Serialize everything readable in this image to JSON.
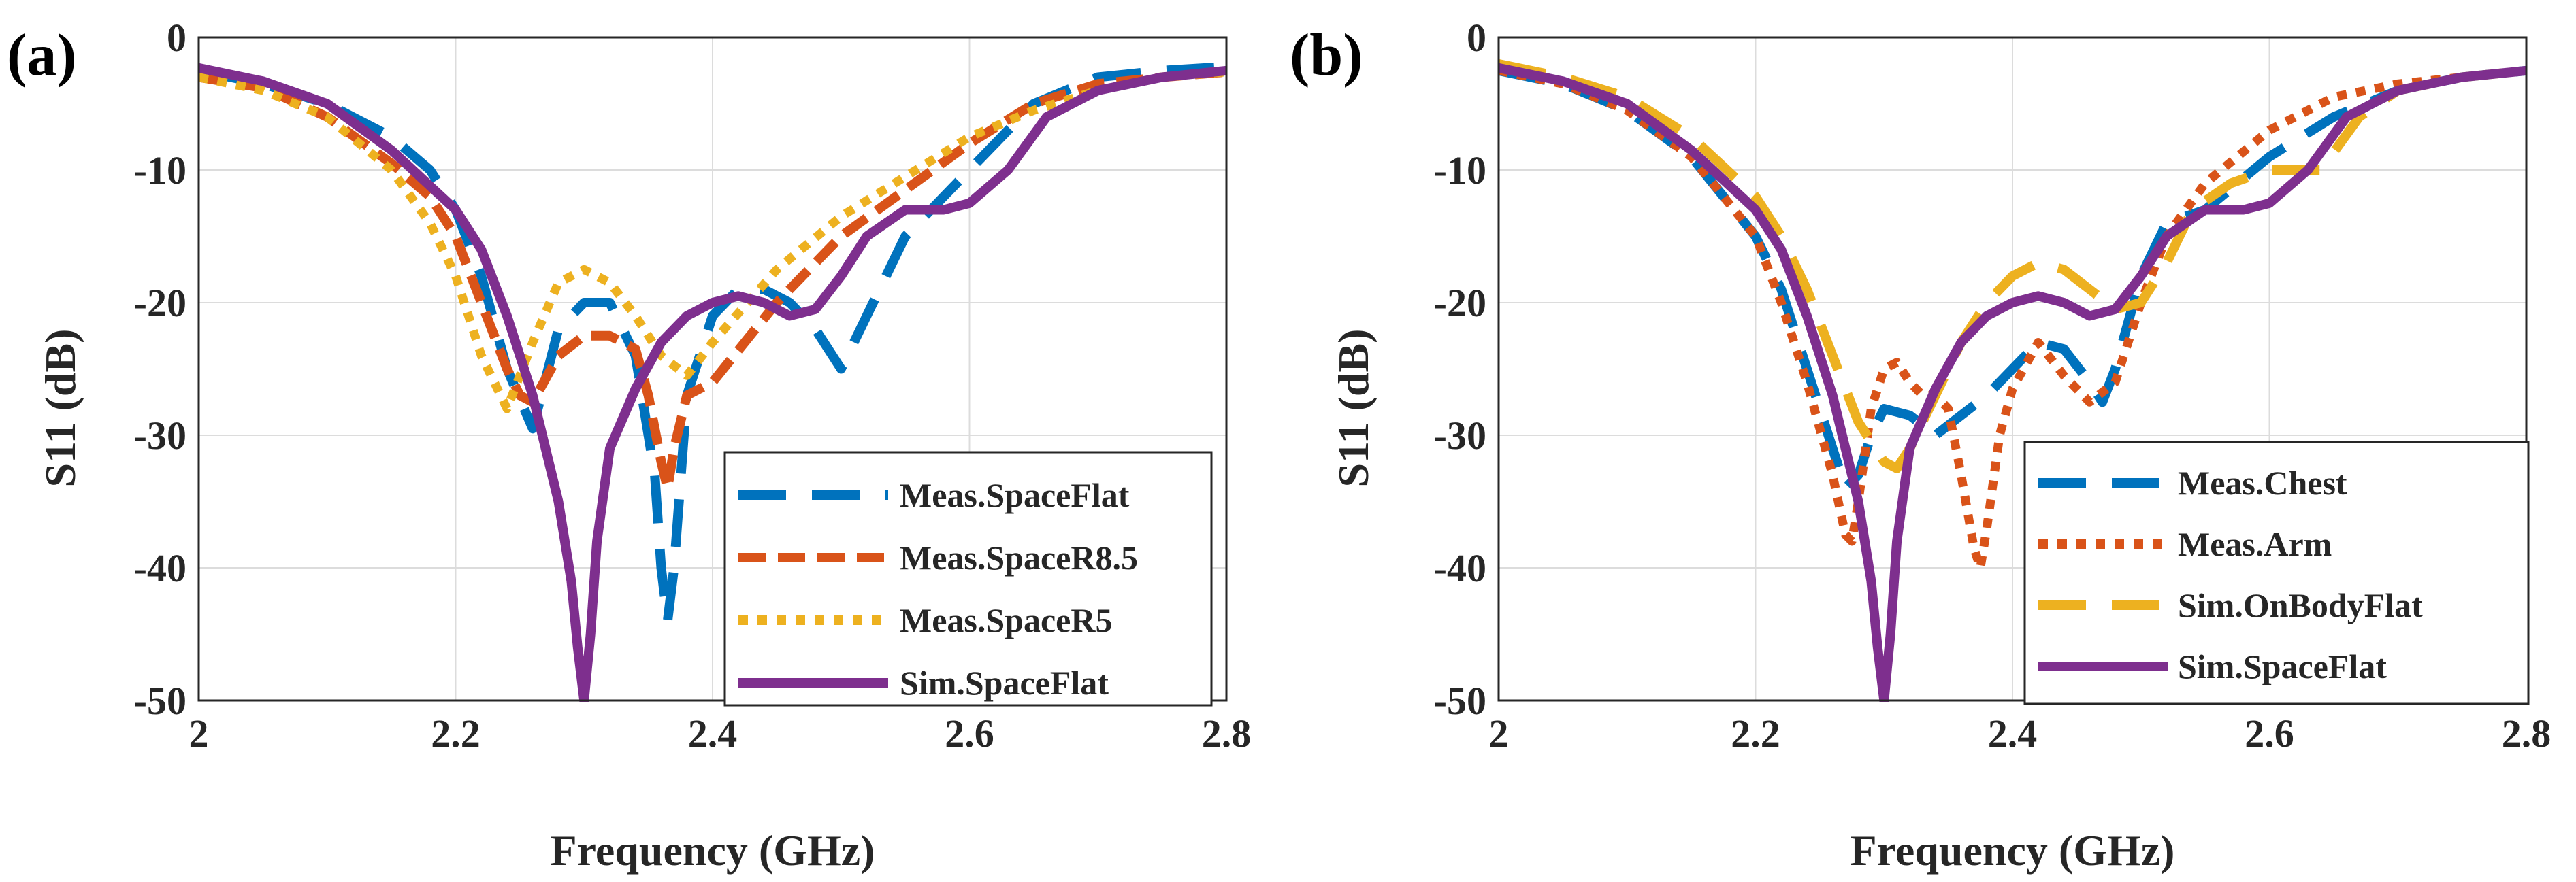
{
  "chart_data": [
    {
      "type": "line",
      "panel_label": "(a)",
      "xlabel": "Frequency (GHz)",
      "ylabel": "S11 (dB)",
      "xlim": [
        2,
        2.8
      ],
      "ylim": [
        -50,
        0
      ],
      "xticks": [
        2,
        2.2,
        2.4,
        2.6,
        2.8
      ],
      "xtick_labels": [
        "2",
        "2.2",
        "2.4",
        "2.6",
        "2.8"
      ],
      "yticks": [
        0,
        -10,
        -20,
        -30,
        -40,
        -50
      ],
      "ytick_labels": [
        "0",
        "-10",
        "-20",
        "-30",
        "-40",
        "-50"
      ],
      "grid": true,
      "legend_position": "bottom-right",
      "series": [
        {
          "name": "Meas.SpaceFlat",
          "color": "#0072BD",
          "style": "long-dash",
          "x": [
            2.0,
            2.05,
            2.1,
            2.15,
            2.18,
            2.2,
            2.22,
            2.24,
            2.26,
            2.28,
            2.3,
            2.32,
            2.34,
            2.355,
            2.36,
            2.365,
            2.37,
            2.38,
            2.4,
            2.42,
            2.44,
            2.46,
            2.48,
            2.5,
            2.52,
            2.55,
            2.6,
            2.65,
            2.7,
            2.75,
            2.8
          ],
          "y": [
            -2.5,
            -3.5,
            -5,
            -7.5,
            -10,
            -13,
            -18,
            -25,
            -29.5,
            -22,
            -20,
            -20,
            -24,
            -33,
            -40,
            -44,
            -40,
            -27,
            -21,
            -19,
            -19,
            -20,
            -22,
            -25,
            -21,
            -15,
            -10,
            -5,
            -3,
            -2.5,
            -2.2
          ]
        },
        {
          "name": "Meas.SpaceR8.5",
          "color": "#D95319",
          "style": "dashed",
          "x": [
            2.0,
            2.05,
            2.1,
            2.15,
            2.18,
            2.2,
            2.22,
            2.24,
            2.25,
            2.26,
            2.28,
            2.3,
            2.32,
            2.34,
            2.35,
            2.36,
            2.365,
            2.37,
            2.38,
            2.4,
            2.45,
            2.5,
            2.55,
            2.6,
            2.65,
            2.7,
            2.75,
            2.8
          ],
          "y": [
            -3,
            -3.8,
            -6,
            -9.5,
            -12,
            -15,
            -20,
            -25,
            -27,
            -27.5,
            -24,
            -22.5,
            -22.5,
            -23.5,
            -27,
            -32,
            -34,
            -31,
            -27,
            -26,
            -20,
            -15,
            -11.5,
            -8,
            -5,
            -3.5,
            -3,
            -2.6
          ]
        },
        {
          "name": "Meas.SpaceR5",
          "color": "#EDB120",
          "style": "dotted",
          "x": [
            2.0,
            2.05,
            2.1,
            2.15,
            2.18,
            2.2,
            2.22,
            2.24,
            2.26,
            2.28,
            2.3,
            2.32,
            2.34,
            2.36,
            2.38,
            2.4,
            2.45,
            2.5,
            2.55,
            2.6,
            2.65,
            2.7,
            2.75,
            2.8
          ],
          "y": [
            -3,
            -4,
            -6,
            -10,
            -14,
            -18,
            -24,
            -28,
            -23,
            -18.5,
            -17.5,
            -18.5,
            -21,
            -24,
            -25.5,
            -23,
            -17.5,
            -13.5,
            -10.5,
            -7.5,
            -5.5,
            -4,
            -3,
            -2.6
          ]
        },
        {
          "name": "Sim.SpaceFlat",
          "color": "#7E2F8E",
          "style": "solid",
          "x": [
            2.0,
            2.05,
            2.1,
            2.15,
            2.2,
            2.22,
            2.24,
            2.26,
            2.28,
            2.29,
            2.295,
            2.3,
            2.305,
            2.31,
            2.32,
            2.34,
            2.36,
            2.38,
            2.4,
            2.42,
            2.44,
            2.46,
            2.48,
            2.5,
            2.52,
            2.55,
            2.58,
            2.6,
            2.63,
            2.66,
            2.7,
            2.75,
            2.8
          ],
          "y": [
            -2.3,
            -3.3,
            -5,
            -8.5,
            -13,
            -16,
            -21,
            -27,
            -35,
            -41,
            -46,
            -50,
            -45,
            -38,
            -31,
            -26.5,
            -23,
            -21,
            -20,
            -19.5,
            -20,
            -21,
            -20.5,
            -18,
            -15,
            -13,
            -13,
            -12.5,
            -10,
            -6,
            -4,
            -3,
            -2.5
          ]
        }
      ]
    },
    {
      "type": "line",
      "panel_label": "(b)",
      "xlabel": "Frequency (GHz)",
      "ylabel": "S11 (dB)",
      "xlim": [
        2,
        2.8
      ],
      "ylim": [
        -50,
        0
      ],
      "xticks": [
        2,
        2.2,
        2.4,
        2.6,
        2.8
      ],
      "xtick_labels": [
        "2",
        "2.2",
        "2.4",
        "2.6",
        "2.8"
      ],
      "yticks": [
        0,
        -10,
        -20,
        -30,
        -40,
        -50
      ],
      "ytick_labels": [
        "0",
        "-10",
        "-20",
        "-30",
        "-40",
        "-50"
      ],
      "grid": true,
      "legend_position": "bottom-right",
      "series": [
        {
          "name": "Meas.Chest",
          "color": "#0072BD",
          "style": "long-dash",
          "x": [
            2.0,
            2.05,
            2.1,
            2.15,
            2.2,
            2.22,
            2.24,
            2.26,
            2.27,
            2.28,
            2.29,
            2.3,
            2.32,
            2.34,
            2.36,
            2.38,
            2.4,
            2.42,
            2.44,
            2.46,
            2.47,
            2.48,
            2.5,
            2.52,
            2.55,
            2.6,
            2.65,
            2.7,
            2.75,
            2.8
          ],
          "y": [
            -2.5,
            -3.5,
            -5.5,
            -9,
            -15,
            -19,
            -25,
            -31,
            -34,
            -33,
            -30,
            -28,
            -28.5,
            -30,
            -28.5,
            -27,
            -25,
            -23,
            -23.5,
            -26,
            -27.5,
            -25,
            -18,
            -14,
            -13,
            -9,
            -6,
            -4,
            -3,
            -2.5
          ]
        },
        {
          "name": "Meas.Arm",
          "color": "#D95319",
          "style": "dotted",
          "x": [
            2.0,
            2.05,
            2.1,
            2.15,
            2.2,
            2.22,
            2.24,
            2.26,
            2.27,
            2.275,
            2.28,
            2.29,
            2.3,
            2.31,
            2.32,
            2.33,
            2.34,
            2.35,
            2.36,
            2.37,
            2.375,
            2.38,
            2.39,
            2.4,
            2.42,
            2.44,
            2.46,
            2.48,
            2.5,
            2.52,
            2.55,
            2.6,
            2.65,
            2.7,
            2.75,
            2.8
          ],
          "y": [
            -2.5,
            -3.5,
            -5.5,
            -9,
            -15,
            -20,
            -26,
            -33,
            -37.5,
            -38,
            -35,
            -28,
            -25,
            -24.5,
            -26,
            -27,
            -27,
            -28,
            -33,
            -38.5,
            -40,
            -37,
            -30,
            -26.5,
            -23,
            -25.5,
            -27.5,
            -26,
            -20,
            -15,
            -11,
            -7,
            -4.5,
            -3.5,
            -3,
            -2.5
          ]
        },
        {
          "name": "Sim.OnBodyFlat",
          "color": "#EDB120",
          "style": "long-dash",
          "x": [
            2.0,
            2.05,
            2.1,
            2.15,
            2.2,
            2.22,
            2.24,
            2.26,
            2.28,
            2.3,
            2.31,
            2.32,
            2.34,
            2.36,
            2.38,
            2.4,
            2.42,
            2.44,
            2.46,
            2.48,
            2.5,
            2.52,
            2.54,
            2.57,
            2.6,
            2.62,
            2.64,
            2.67,
            2.7,
            2.75,
            2.8
          ],
          "y": [
            -2,
            -3,
            -4.5,
            -7.5,
            -12,
            -15,
            -19,
            -24,
            -29,
            -32,
            -32.5,
            -31,
            -27,
            -23,
            -20,
            -18,
            -17,
            -17.5,
            -19,
            -20.5,
            -20,
            -17,
            -13,
            -11,
            -10,
            -10,
            -10,
            -6,
            -4,
            -3,
            -2.5
          ]
        },
        {
          "name": "Sim.SpaceFlat",
          "color": "#7E2F8E",
          "style": "solid",
          "x": [
            2.0,
            2.05,
            2.1,
            2.15,
            2.2,
            2.22,
            2.24,
            2.26,
            2.28,
            2.29,
            2.295,
            2.3,
            2.305,
            2.31,
            2.32,
            2.34,
            2.36,
            2.38,
            2.4,
            2.42,
            2.44,
            2.46,
            2.48,
            2.5,
            2.52,
            2.55,
            2.58,
            2.6,
            2.63,
            2.66,
            2.7,
            2.75,
            2.8
          ],
          "y": [
            -2.3,
            -3.3,
            -5,
            -8.5,
            -13,
            -16,
            -21,
            -27,
            -35,
            -41,
            -46,
            -50,
            -45,
            -38,
            -31,
            -26.5,
            -23,
            -21,
            -20,
            -19.5,
            -20,
            -21,
            -20.5,
            -18,
            -15,
            -13,
            -13,
            -12.5,
            -10,
            -6,
            -4,
            -3,
            -2.5
          ]
        }
      ]
    }
  ]
}
